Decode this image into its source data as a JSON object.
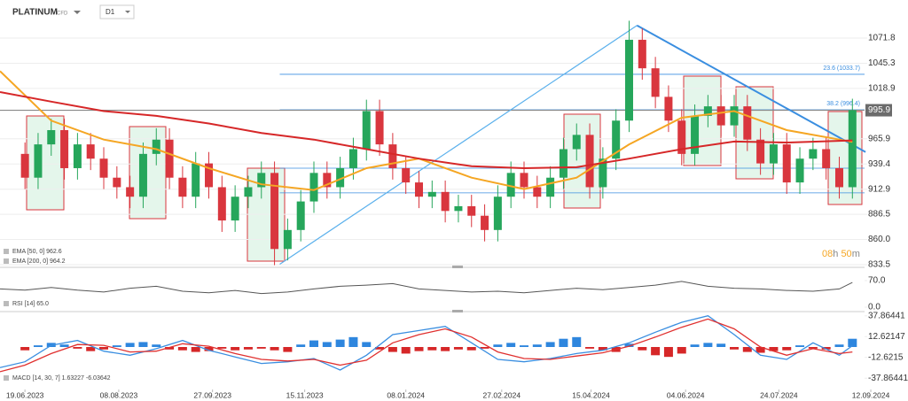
{
  "header": {
    "symbol": "PLATINUM",
    "instrument": "CFD",
    "timeframe": "D1"
  },
  "chart_data": [
    {
      "type": "candlestick",
      "xlim": [
        -1.9,
        64.6
      ],
      "ylim": [
        832.6,
        1102.5
      ],
      "yticks": [
        {
          "value": 833.5,
          "label": "833.5"
        },
        {
          "value": 860,
          "label": "860.0"
        },
        {
          "value": 886.5,
          "label": "886.5"
        },
        {
          "value": 912.9,
          "label": "912.9"
        },
        {
          "value": 939.4,
          "label": "939.4"
        },
        {
          "value": 965.9,
          "label": "965.9"
        },
        {
          "value": 1018.9,
          "label": "1018.9"
        },
        {
          "value": 1045.3,
          "label": "1045.3"
        },
        {
          "value": 1071.8,
          "label": "1071.8"
        }
      ],
      "grid": true,
      "up_color": "#26a65b",
      "down_color": "#d9363e",
      "open": [
        950,
        925,
        960,
        975,
        935,
        960,
        945,
        925,
        915,
        905,
        950,
        965,
        925,
        905,
        940,
        915,
        880,
        905,
        915,
        930,
        850,
        870,
        900,
        930,
        915,
        935,
        955,
        995,
        960,
        935,
        920,
        905,
        910,
        890,
        895,
        885,
        870,
        905,
        930,
        915,
        905,
        925,
        955,
        970,
        915,
        945,
        985,
        1070,
        1040,
        1010,
        985,
        950,
        990,
        1000,
        980,
        1000,
        965,
        940,
        960,
        920,
        945,
        955,
        935,
        915
      ],
      "high": [
        962,
        972,
        987,
        987,
        972,
        972,
        957,
        937,
        927,
        962,
        977,
        977,
        937,
        952,
        952,
        927,
        917,
        927,
        942,
        942,
        882,
        912,
        942,
        942,
        947,
        967,
        1007,
        1007,
        972,
        947,
        932,
        922,
        922,
        907,
        907,
        897,
        917,
        942,
        942,
        927,
        937,
        967,
        982,
        982,
        957,
        997,
        1090,
        1082,
        1052,
        1022,
        997,
        1002,
        1012,
        1012,
        1012,
        1012,
        977,
        972,
        972,
        957,
        967,
        967,
        947,
        1008
      ],
      "low": [
        913,
        913,
        948,
        923,
        923,
        933,
        913,
        903,
        893,
        893,
        938,
        913,
        893,
        893,
        903,
        868,
        868,
        893,
        903,
        833,
        838,
        858,
        888,
        903,
        903,
        923,
        943,
        948,
        923,
        908,
        893,
        893,
        878,
        878,
        873,
        858,
        858,
        893,
        903,
        893,
        893,
        913,
        943,
        903,
        903,
        933,
        973,
        1028,
        998,
        973,
        938,
        938,
        978,
        968,
        968,
        953,
        928,
        928,
        908,
        908,
        933,
        923,
        903,
        903
      ],
      "close": [
        925,
        960,
        975,
        935,
        960,
        945,
        925,
        915,
        905,
        950,
        965,
        925,
        905,
        940,
        915,
        880,
        905,
        915,
        930,
        850,
        870,
        900,
        930,
        915,
        935,
        955,
        995,
        960,
        935,
        920,
        905,
        910,
        890,
        895,
        885,
        870,
        905,
        930,
        915,
        905,
        925,
        955,
        970,
        915,
        945,
        985,
        1070,
        1040,
        1010,
        985,
        950,
        990,
        1000,
        980,
        1000,
        965,
        940,
        960,
        920,
        945,
        955,
        935,
        915,
        996
      ],
      "series": [
        {
          "name": "EMA [50, 0] 962.6",
          "color": "#f5a623",
          "x": [
            -1.9,
            2,
            6,
            10,
            14,
            18,
            22,
            26,
            30,
            34,
            38,
            42,
            46,
            50,
            54,
            58,
            63
          ],
          "values": [
            1037,
            985,
            965,
            955,
            935,
            918,
            912,
            935,
            945,
            925,
            913,
            925,
            960,
            988,
            995,
            975,
            962.6
          ]
        },
        {
          "name": "EMA [200, 0] 964.2",
          "color": "#d62728",
          "x": [
            -1.9,
            2,
            6,
            10,
            14,
            18,
            22,
            26,
            30,
            34,
            38,
            42,
            46,
            50,
            54,
            58,
            63
          ],
          "values": [
            1015,
            1005,
            995,
            990,
            982,
            972,
            965,
            955,
            945,
            937,
            935,
            936,
            945,
            955,
            963,
            962,
            964.2
          ]
        }
      ],
      "fib_levels": [
        {
          "value": 1033.7,
          "label": "23.6 (1033.7)"
        },
        {
          "value": 996.4,
          "label": "38.2 (996.4)"
        },
        {
          "value": 935
        },
        {
          "value": 909
        }
      ],
      "fib_start": 19.4,
      "fib_color": "#3a8ee0",
      "trendlines": [
        {
          "x": [
            19.4,
            46.6
          ],
          "y": [
            834,
            1085
          ],
          "color": "#5ab0ec"
        },
        {
          "x": [
            46.6,
            64.0
          ],
          "y": [
            1085,
            952
          ],
          "color": "#3a8ee0"
        }
      ],
      "last_price": {
        "value": 995.9,
        "label": "995.9"
      },
      "countdown": [
        "08",
        "h ",
        "50",
        "m"
      ]
    },
    {
      "type": "line",
      "xlim": [
        -1.9,
        64.6
      ],
      "ylim": [
        -7,
        98
      ],
      "yticks": [
        {
          "value": 0,
          "label": "0.0"
        },
        {
          "value": 70,
          "label": "70.0"
        }
      ],
      "series": [
        {
          "name": "RSI [14] 65.0",
          "color": "#555555",
          "x": [
            -1.9,
            0,
            2,
            4,
            6,
            8,
            10,
            12,
            14,
            16,
            18,
            20,
            22,
            24,
            26,
            28,
            30,
            32,
            34,
            36,
            38,
            40,
            42,
            44,
            46,
            48,
            50,
            52,
            54,
            56,
            58,
            60,
            62,
            63
          ],
          "values": [
            48,
            45,
            52,
            45,
            40,
            50,
            55,
            42,
            38,
            44,
            36,
            40,
            48,
            55,
            58,
            62,
            48,
            44,
            40,
            42,
            38,
            44,
            50,
            46,
            52,
            58,
            68,
            55,
            50,
            48,
            44,
            42,
            48,
            65
          ]
        }
      ]
    },
    {
      "type": "macd",
      "xlim": [
        -1.9,
        64.6
      ],
      "ylim": [
        -51.6,
        43
      ],
      "yticks": [
        37.86441,
        12.62147,
        -12.6215,
        -37.86441
      ],
      "xticks": [
        {
          "value": 0,
          "label": "19.06.2023"
        },
        {
          "value": 7.14,
          "label": "08.08.2023"
        },
        {
          "value": 14.28,
          "label": "27.09.2023"
        },
        {
          "value": 21.3,
          "label": "15.11.2023"
        },
        {
          "value": 29,
          "label": "08.01.2024"
        },
        {
          "value": 36.3,
          "label": "27.02.2024"
        },
        {
          "value": 43.1,
          "label": "15.04.2024"
        },
        {
          "value": 50.3,
          "label": "04.06.2024"
        },
        {
          "value": 57.4,
          "label": "24.07.2024"
        },
        {
          "value": 64.4,
          "label": "12.09.2024"
        }
      ],
      "label": "MACD [14, 30, 7] 1.63227  -6.03642",
      "hist_pos_color": "#2e86de",
      "hist_neg_color": "#d62728",
      "histogram": [
        -4,
        2,
        5,
        3,
        -2,
        -5,
        -3,
        2,
        5,
        6,
        3,
        -3,
        -4,
        -6,
        -5,
        -2,
        -4,
        -3,
        -2,
        -4,
        -6,
        3,
        8,
        6,
        9,
        12,
        6,
        -3,
        -6,
        -8,
        -5,
        -4,
        -5,
        -3,
        -4,
        -2,
        3,
        5,
        2,
        3,
        6,
        10,
        12,
        -2,
        -4,
        -6,
        4,
        -4,
        -10,
        -12,
        -8,
        3,
        5,
        4,
        -3,
        -6,
        -7,
        -5,
        -4,
        2,
        -2,
        -3,
        3,
        10
      ],
      "series": [
        {
          "name": "MACD",
          "color": "#3a8ee0",
          "x": [
            -1.9,
            0,
            2,
            4,
            6,
            8,
            10,
            12,
            14,
            16,
            18,
            20,
            22,
            24,
            26,
            28,
            30,
            32,
            34,
            36,
            38,
            40,
            42,
            44,
            46,
            48,
            50,
            52,
            54,
            56,
            58,
            60,
            62,
            63
          ],
          "values": [
            -25,
            -18,
            2,
            8,
            -5,
            -10,
            -2,
            8,
            -4,
            -12,
            -20,
            -18,
            -14,
            -28,
            -10,
            15,
            20,
            25,
            5,
            -15,
            -18,
            -14,
            -8,
            -4,
            5,
            18,
            30,
            38,
            15,
            -10,
            -15,
            5,
            -10,
            1.63227
          ]
        },
        {
          "name": "Signal",
          "color": "#e0302f",
          "x": [
            -1.9,
            0,
            2,
            4,
            6,
            8,
            10,
            12,
            14,
            16,
            18,
            20,
            22,
            24,
            26,
            28,
            30,
            32,
            34,
            36,
            38,
            40,
            42,
            44,
            46,
            48,
            50,
            52,
            54,
            56,
            58,
            60,
            62,
            63
          ],
          "values": [
            -30,
            -22,
            -8,
            3,
            2,
            -6,
            -5,
            4,
            1,
            -8,
            -15,
            -17,
            -15,
            -22,
            -16,
            5,
            15,
            22,
            12,
            -6,
            -14,
            -15,
            -11,
            -7,
            1,
            12,
            24,
            34,
            22,
            0,
            -10,
            -2,
            -8,
            -6.03642
          ]
        }
      ]
    }
  ]
}
